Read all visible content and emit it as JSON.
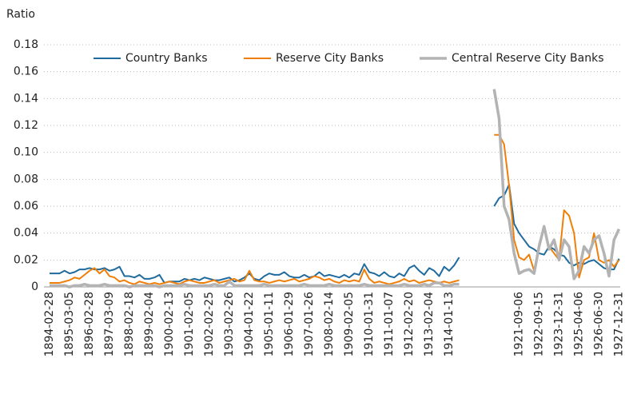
{
  "chart_data": {
    "type": "line",
    "y_axis_label": "Ratio",
    "categories": [
      "1894-02-28",
      null,
      null,
      null,
      "1895-03-05",
      null,
      null,
      null,
      "1896-02-28",
      null,
      null,
      null,
      "1897-03-09",
      null,
      null,
      null,
      "1898-02-18",
      null,
      null,
      null,
      "1899-02-04",
      null,
      null,
      null,
      "1900-02-13",
      null,
      null,
      null,
      "1901-02-05",
      null,
      null,
      null,
      "1902-02-25",
      null,
      null,
      null,
      "1903-02-26",
      null,
      null,
      null,
      "1904-01-22",
      null,
      null,
      null,
      "1905-01-11",
      null,
      null,
      null,
      "1906-01-29",
      null,
      null,
      null,
      "1907-01-26",
      null,
      null,
      null,
      "1908-02-14",
      null,
      null,
      null,
      "1909-02-05",
      null,
      null,
      null,
      "1910-01-31",
      null,
      null,
      null,
      "1911-01-07",
      null,
      null,
      null,
      "1912-02-20",
      null,
      null,
      null,
      "1913-02-04",
      null,
      null,
      null,
      "1914-01-13",
      null,
      null,
      null,
      null,
      null,
      null,
      null,
      null,
      null,
      null,
      null,
      null,
      null,
      "1921-09-06",
      null,
      null,
      null,
      "1922-09-15",
      null,
      null,
      null,
      "1923-12-31",
      null,
      null,
      null,
      "1925-04-06",
      null,
      null,
      null,
      "1926-06-30",
      null,
      null,
      null,
      "1927-12-31"
    ],
    "series": [
      {
        "name": "Country Banks",
        "color": "#1f6b9e",
        "width": 2,
        "values": [
          0.01,
          0.01,
          0.01,
          0.012,
          0.01,
          0.011,
          0.013,
          0.013,
          0.014,
          0.013,
          0.013,
          0.014,
          0.012,
          0.013,
          0.015,
          0.008,
          0.008,
          0.007,
          0.009,
          0.006,
          0.006,
          0.007,
          0.009,
          0.003,
          0.004,
          0.004,
          0.004,
          0.006,
          0.005,
          0.006,
          0.005,
          0.007,
          0.006,
          0.005,
          0.005,
          0.006,
          0.007,
          0.004,
          0.005,
          0.007,
          0.01,
          0.006,
          0.005,
          0.008,
          0.01,
          0.009,
          0.009,
          0.011,
          0.008,
          0.007,
          0.007,
          0.009,
          0.007,
          0.008,
          0.011,
          0.008,
          0.009,
          0.008,
          0.007,
          0.009,
          0.007,
          0.01,
          0.009,
          0.017,
          0.011,
          0.01,
          0.008,
          0.011,
          0.008,
          0.007,
          0.01,
          0.008,
          0.014,
          0.016,
          0.012,
          0.009,
          0.014,
          0.012,
          0.008,
          0.015,
          0.012,
          0.016,
          0.022,
          null,
          null,
          null,
          null,
          null,
          null,
          0.06,
          0.066,
          0.068,
          0.076,
          0.047,
          0.04,
          0.035,
          0.03,
          0.028,
          0.025,
          0.024,
          0.03,
          0.028,
          0.024,
          0.023,
          0.018,
          0.016,
          0.018,
          0.017,
          0.019,
          0.02,
          0.017,
          0.014,
          0.013,
          0.013,
          0.021
        ]
      },
      {
        "name": "Reserve City Banks",
        "color": "#f07f09",
        "width": 2,
        "values": [
          0.003,
          0.003,
          0.003,
          0.004,
          0.005,
          0.007,
          0.006,
          0.009,
          0.012,
          0.014,
          0.01,
          0.013,
          0.008,
          0.007,
          0.004,
          0.005,
          0.003,
          0.002,
          0.004,
          0.003,
          0.002,
          0.003,
          0.002,
          0.003,
          0.004,
          0.003,
          0.002,
          0.004,
          0.005,
          0.004,
          0.003,
          0.003,
          0.004,
          0.005,
          0.003,
          0.004,
          0.005,
          0.006,
          0.004,
          0.005,
          0.012,
          0.005,
          0.004,
          0.004,
          0.003,
          0.004,
          0.005,
          0.004,
          0.005,
          0.006,
          0.004,
          0.005,
          0.006,
          0.008,
          0.007,
          0.005,
          0.006,
          0.004,
          0.003,
          0.005,
          0.004,
          0.005,
          0.004,
          0.013,
          0.006,
          0.003,
          0.004,
          0.003,
          0.002,
          0.003,
          0.004,
          0.006,
          0.004,
          0.005,
          0.003,
          0.004,
          0.005,
          0.004,
          0.003,
          0.004,
          0.003,
          0.004,
          0.005,
          null,
          null,
          null,
          null,
          null,
          null,
          0.113,
          0.113,
          0.106,
          0.075,
          0.035,
          0.022,
          0.02,
          0.024,
          0.012,
          0.032,
          0.045,
          0.03,
          0.025,
          0.02,
          0.057,
          0.053,
          0.04,
          0.007,
          0.02,
          0.022,
          0.04,
          0.02,
          0.018,
          0.02,
          0.015,
          0.02
        ]
      },
      {
        "name": "Central Reserve City Banks",
        "color": "#b3b3b3",
        "width": 3.5,
        "values": [
          0.001,
          0.001,
          0.001,
          0.001,
          0,
          0.001,
          0.001,
          0.002,
          0.001,
          0.001,
          0.001,
          0.002,
          0.001,
          0.001,
          0.001,
          0.001,
          0,
          0.001,
          0.001,
          0.001,
          0.001,
          0.001,
          0,
          0.001,
          0.001,
          0.001,
          0.001,
          0.002,
          0.001,
          0.001,
          0.001,
          0.001,
          0.001,
          0.002,
          0.001,
          0.001,
          0.004,
          0.001,
          0.001,
          0.001,
          0.001,
          0.001,
          0.001,
          0.002,
          0.001,
          0.001,
          0.001,
          0.001,
          0.001,
          0.001,
          0.001,
          0.002,
          0.001,
          0.001,
          0.001,
          0.001,
          0.002,
          0.001,
          0.001,
          0.001,
          0.001,
          0.001,
          0.001,
          0.002,
          0.001,
          0.001,
          0.001,
          0.001,
          0.001,
          0.001,
          0.001,
          0.002,
          0.001,
          0.001,
          0.001,
          0.002,
          0.001,
          0.003,
          0.003,
          0.001,
          0.001,
          0.002,
          0.002,
          null,
          null,
          null,
          null,
          null,
          null,
          0.147,
          0.125,
          0.06,
          0.05,
          0.025,
          0.01,
          0.012,
          0.013,
          0.01,
          0.03,
          0.045,
          0.028,
          0.035,
          0.02,
          0.035,
          0.03,
          0.006,
          0.012,
          0.03,
          0.025,
          0.035,
          0.038,
          0.025,
          0.008,
          0.035,
          0.043
        ]
      }
    ],
    "ylim": [
      0,
      0.18
    ],
    "yticks": [
      0,
      0.02,
      0.04,
      0.06,
      0.08,
      {
        "value": 0.1,
        "label": "0.10"
      },
      0.12,
      0.14,
      0.16,
      0.18
    ],
    "grid": true,
    "legend": "top"
  }
}
